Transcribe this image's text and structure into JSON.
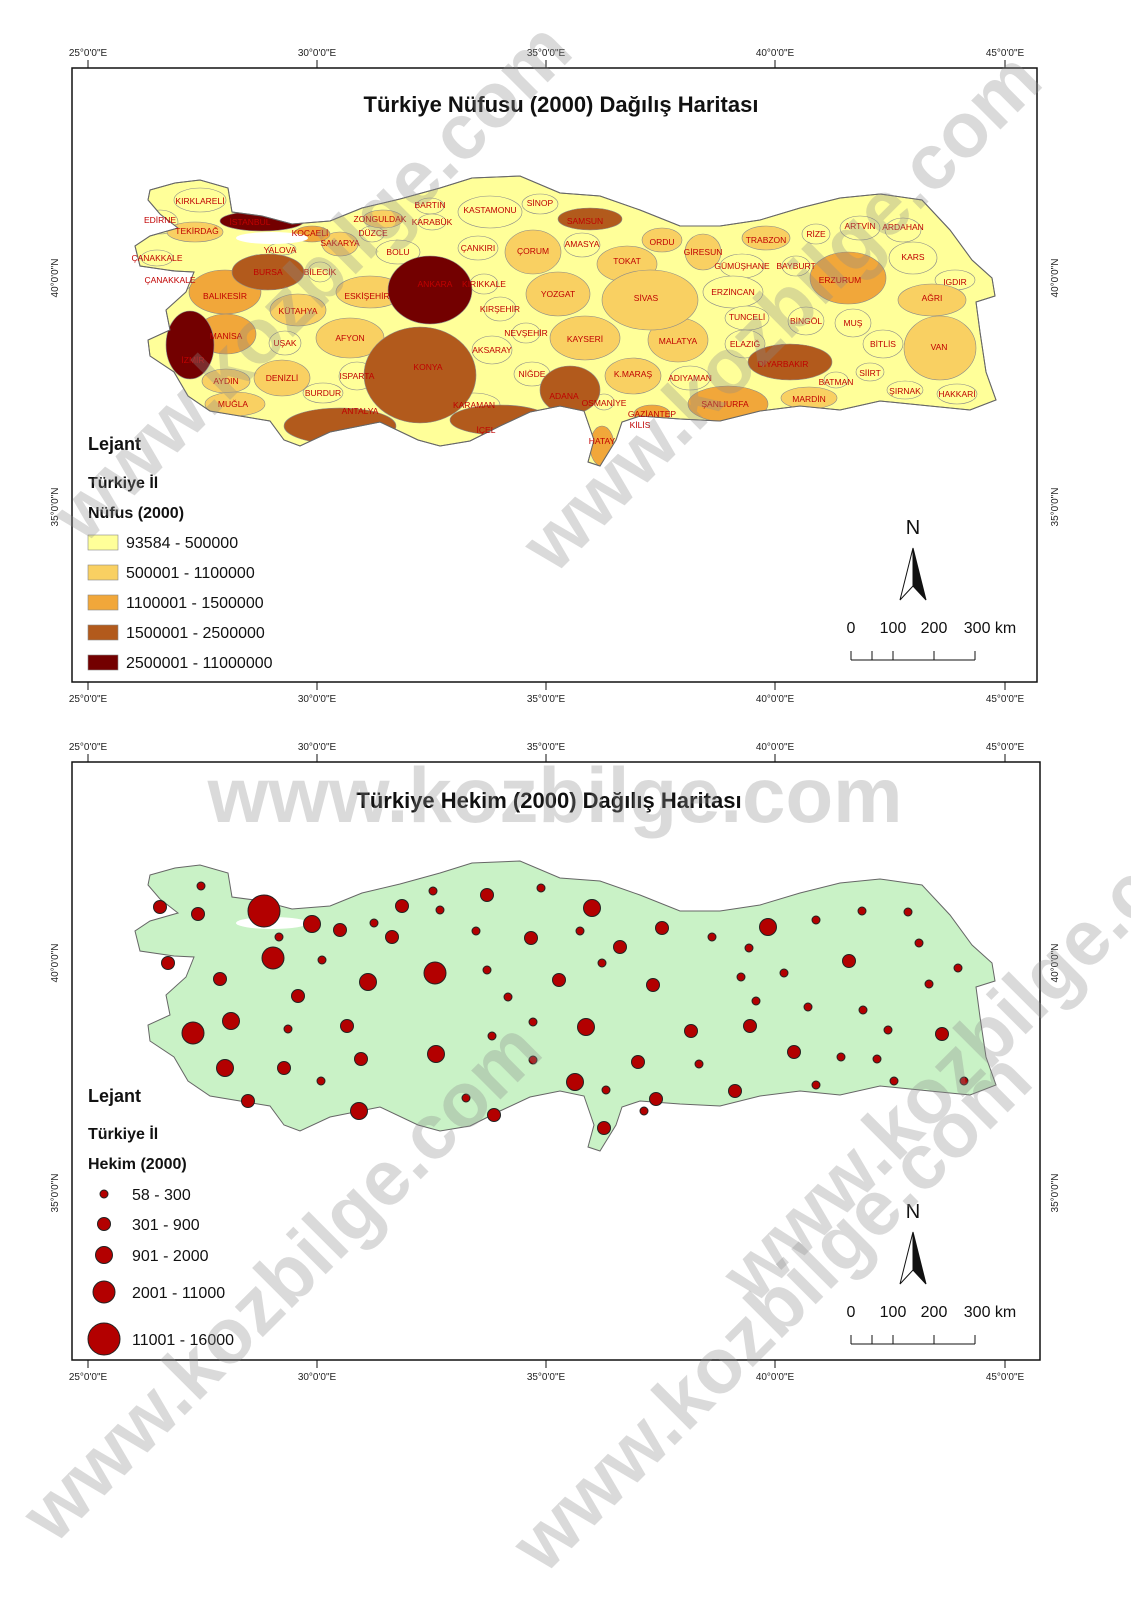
{
  "population_map": {
    "title": "Türkiye Nüfusu (2000) Dağılış Haritası",
    "legend": {
      "title": "Lejant",
      "layer": "Türkiye İl",
      "field": "Nüfus (2000)",
      "classes": [
        {
          "label": "93584 - 500000",
          "color": "#ffff99"
        },
        {
          "label": "500001 - 1100000",
          "color": "#f9d062"
        },
        {
          "label": "1100001 - 1500000",
          "color": "#f1a73a"
        },
        {
          "label": "1500001 - 2500000",
          "color": "#b25a1c"
        },
        {
          "label": "2500001 - 11000000",
          "color": "#730000"
        }
      ]
    },
    "provinces": [
      {
        "name": "KIRKLARELİ",
        "class": 0
      },
      {
        "name": "EDİRNE",
        "class": 0
      },
      {
        "name": "TEKİRDAĞ",
        "class": 1
      },
      {
        "name": "İSTANBUL",
        "class": 4
      },
      {
        "name": "KOCAELİ",
        "class": 2
      },
      {
        "name": "YALOVA",
        "class": 0
      },
      {
        "name": "SAKARYA",
        "class": 1
      },
      {
        "name": "ZONGULDAK",
        "class": 1
      },
      {
        "name": "BARTIN",
        "class": 0
      },
      {
        "name": "KARABÜK",
        "class": 0
      },
      {
        "name": "DÜZCE",
        "class": 0
      },
      {
        "name": "BOLU",
        "class": 0
      },
      {
        "name": "KASTAMONU",
        "class": 0
      },
      {
        "name": "SİNOP",
        "class": 0
      },
      {
        "name": "SAMSUN",
        "class": 3
      },
      {
        "name": "ÇANKIRI",
        "class": 0
      },
      {
        "name": "ÇORUM",
        "class": 1
      },
      {
        "name": "AMASYA",
        "class": 0
      },
      {
        "name": "TOKAT",
        "class": 1
      },
      {
        "name": "ORDU",
        "class": 1
      },
      {
        "name": "GİRESUN",
        "class": 1
      },
      {
        "name": "TRABZON",
        "class": 1
      },
      {
        "name": "RİZE",
        "class": 0
      },
      {
        "name": "ARTVİN",
        "class": 0
      },
      {
        "name": "ARDAHAN",
        "class": 0
      },
      {
        "name": "KARS",
        "class": 0
      },
      {
        "name": "IGDIR",
        "class": 0
      },
      {
        "name": "AĞRI",
        "class": 1
      },
      {
        "name": "ERZURUM",
        "class": 2
      },
      {
        "name": "BAYBURT",
        "class": 0
      },
      {
        "name": "GÜMÜŞHANE",
        "class": 0
      },
      {
        "name": "ERZİNCAN",
        "class": 0
      },
      {
        "name": "TUNCELİ",
        "class": 0
      },
      {
        "name": "BİNGÖL",
        "class": 0
      },
      {
        "name": "MUŞ",
        "class": 0
      },
      {
        "name": "BİTLİS",
        "class": 0
      },
      {
        "name": "VAN",
        "class": 1
      },
      {
        "name": "SİİRT",
        "class": 0
      },
      {
        "name": "ŞIRNAK",
        "class": 0
      },
      {
        "name": "HAKKARİ",
        "class": 0
      },
      {
        "name": "BATMAN",
        "class": 0
      },
      {
        "name": "MARDİN",
        "class": 1
      },
      {
        "name": "DİYARBAKIR",
        "class": 3
      },
      {
        "name": "ELAZIĞ",
        "class": 0
      },
      {
        "name": "MALATYA",
        "class": 1
      },
      {
        "name": "ADIYAMAN",
        "class": 0
      },
      {
        "name": "ŞANLIURFA",
        "class": 2
      },
      {
        "name": "GAZİANTEP",
        "class": 2
      },
      {
        "name": "KİLİS",
        "class": 0
      },
      {
        "name": "HATAY",
        "class": 2
      },
      {
        "name": "OSMANİYE",
        "class": 0
      },
      {
        "name": "ADANA",
        "class": 3
      },
      {
        "name": "K.MARAŞ",
        "class": 1
      },
      {
        "name": "KAYSERİ",
        "class": 1
      },
      {
        "name": "SİVAS",
        "class": 1
      },
      {
        "name": "YOZGAT",
        "class": 1
      },
      {
        "name": "KIRŞEHİR",
        "class": 0
      },
      {
        "name": "NEVŞEHİR",
        "class": 0
      },
      {
        "name": "AKSARAY",
        "class": 0
      },
      {
        "name": "NİĞDE",
        "class": 0
      },
      {
        "name": "KARAMAN",
        "class": 0
      },
      {
        "name": "İÇEL",
        "class": 3
      },
      {
        "name": "KONYA",
        "class": 3
      },
      {
        "name": "ANTALYA",
        "class": 3
      },
      {
        "name": "ISPARTA",
        "class": 0
      },
      {
        "name": "BURDUR",
        "class": 0
      },
      {
        "name": "AFYON",
        "class": 1
      },
      {
        "name": "KÜTAHYA",
        "class": 1
      },
      {
        "name": "ESKİŞEHİR",
        "class": 1
      },
      {
        "name": "BİLECİK",
        "class": 0
      },
      {
        "name": "BURSA",
        "class": 3
      },
      {
        "name": "BALIKESİR",
        "class": 2
      },
      {
        "name": "ÇANAKKALE",
        "class": 0
      },
      {
        "name": "ÇANAKKALE",
        "class": 0
      },
      {
        "name": "MANİSA",
        "class": 2
      },
      {
        "name": "İZMİR",
        "class": 4
      },
      {
        "name": "UŞAK",
        "class": 0
      },
      {
        "name": "DENİZLİ",
        "class": 1
      },
      {
        "name": "AYDIN",
        "class": 1
      },
      {
        "name": "MUĞLA",
        "class": 1
      },
      {
        "name": "ANKARA",
        "class": 4
      },
      {
        "name": "KIRIKKALE",
        "class": 0
      }
    ],
    "north": "N",
    "scale": [
      "0",
      "100",
      "200",
      "300 km"
    ]
  },
  "physician_map": {
    "title": "Türkiye Hekim (2000) Dağılış Haritası",
    "legend": {
      "title": "Lejant",
      "layer": "Türkiye İl",
      "field": "Hekim (2000)",
      "classes": [
        "58 - 300",
        "301 - 900",
        "901 - 2000",
        "2001 - 11000",
        "11001 - 16000"
      ],
      "color": "#b30000"
    },
    "symbol_classes": [
      0,
      1,
      1,
      4,
      2,
      1,
      0,
      1,
      0,
      0,
      1,
      0,
      2,
      0,
      1,
      1,
      1,
      0,
      1,
      0,
      0,
      3,
      1,
      1,
      1,
      2,
      3,
      0,
      0,
      1,
      0,
      1,
      0,
      0,
      2,
      0,
      0,
      0,
      0,
      1,
      0,
      0,
      0,
      0,
      0,
      0,
      0,
      3,
      2,
      0,
      1,
      0,
      0,
      2,
      0,
      1,
      1,
      1,
      0,
      1,
      0,
      0,
      1,
      2,
      2,
      1,
      0,
      0,
      1,
      2,
      0,
      0,
      1,
      1,
      0,
      1,
      0,
      0,
      0,
      1,
      2,
      1
    ],
    "land_color": "#c9f2c6",
    "north": "N",
    "scale": [
      "0",
      "100",
      "200",
      "300 km"
    ]
  },
  "lon_labels": [
    "25°0'0\"E",
    "30°0'0\"E",
    "35°0'0\"E",
    "40°0'0\"E",
    "45°0'0\"E"
  ],
  "lat_labels": [
    "40°0'0\"N",
    "35°0'0\"N"
  ],
  "watermark": "www.kozbilge.com"
}
